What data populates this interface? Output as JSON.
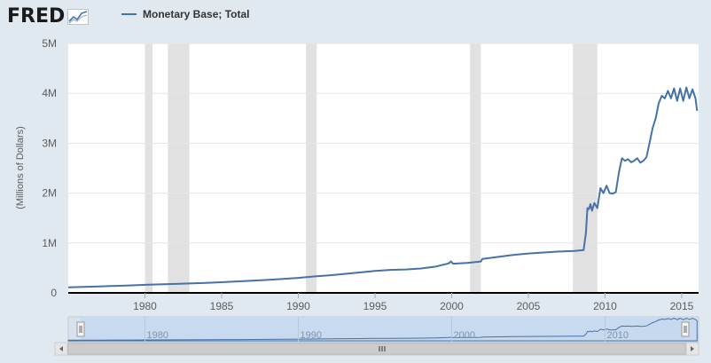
{
  "header": {
    "logo_text": "FRED",
    "logo_icon": "line-chart-icon"
  },
  "legend": {
    "label": "Monetary Base; Total"
  },
  "colors": {
    "series": "#4572a7",
    "recession": "#e1e1e1",
    "plot_bg": "#ffffff",
    "page_bg": "#e1e9f0",
    "navigator_fill": "#c6d8ee",
    "navigator_line": "#4572a7"
  },
  "chart_data": {
    "type": "line",
    "title": "",
    "ylabel": "(Millions of Dollars)",
    "xlabel": "",
    "xlim": [
      1975.0,
      2016.1
    ],
    "ylim": [
      0,
      5000000
    ],
    "y_ticks": [
      {
        "value": 0,
        "label": "0"
      },
      {
        "value": 1000000,
        "label": "1M"
      },
      {
        "value": 2000000,
        "label": "2M"
      },
      {
        "value": 3000000,
        "label": "3M"
      },
      {
        "value": 4000000,
        "label": "4M"
      },
      {
        "value": 5000000,
        "label": "5M"
      }
    ],
    "x_ticks": [
      {
        "value": 1980,
        "label": "1980"
      },
      {
        "value": 1985,
        "label": "1985"
      },
      {
        "value": 1990,
        "label": "1990"
      },
      {
        "value": 1995,
        "label": "1995"
      },
      {
        "value": 2000,
        "label": "2000"
      },
      {
        "value": 2005,
        "label": "2005"
      },
      {
        "value": 2010,
        "label": "2010"
      },
      {
        "value": 2015,
        "label": "2015"
      }
    ],
    "grid": true,
    "legend_position": "top",
    "recessions": [
      [
        1980.0,
        1980.5
      ],
      [
        1981.5,
        1982.9
      ],
      [
        1990.5,
        1991.2
      ],
      [
        2001.2,
        2001.9
      ],
      [
        2007.9,
        2009.5
      ]
    ],
    "series": [
      {
        "name": "Monetary Base; Total",
        "x": [
          1975.0,
          1977.0,
          1979.0,
          1980.0,
          1982.0,
          1984.0,
          1986.0,
          1988.0,
          1990.0,
          1991.0,
          1992.0,
          1993.0,
          1994.0,
          1995.0,
          1996.0,
          1997.0,
          1998.0,
          1999.0,
          1999.8,
          1999.95,
          2000.1,
          2001.0,
          2001.9,
          2002.0,
          2003.0,
          2004.0,
          2005.0,
          2006.0,
          2007.0,
          2008.0,
          2008.6,
          2008.75,
          2008.85,
          2008.95,
          2009.05,
          2009.15,
          2009.3,
          2009.5,
          2009.7,
          2009.9,
          2010.1,
          2010.3,
          2010.5,
          2010.7,
          2010.9,
          2011.1,
          2011.3,
          2011.5,
          2011.7,
          2011.9,
          2012.1,
          2012.3,
          2012.5,
          2012.7,
          2012.9,
          2013.1,
          2013.3,
          2013.5,
          2013.7,
          2013.9,
          2014.1,
          2014.3,
          2014.5,
          2014.7,
          2014.9,
          2015.1,
          2015.3,
          2015.5,
          2015.7,
          2015.9,
          2016.0
        ],
        "values": [
          110000,
          130000,
          150000,
          162000,
          180000,
          200000,
          230000,
          260000,
          300000,
          330000,
          350000,
          380000,
          410000,
          440000,
          460000,
          470000,
          490000,
          530000,
          590000,
          630000,
          585000,
          600000,
          630000,
          680000,
          720000,
          760000,
          790000,
          810000,
          830000,
          840000,
          860000,
          1200000,
          1700000,
          1680000,
          1780000,
          1650000,
          1800000,
          1700000,
          2100000,
          2000000,
          2150000,
          2000000,
          1990000,
          2020000,
          2400000,
          2700000,
          2650000,
          2680000,
          2620000,
          2650000,
          2700000,
          2610000,
          2650000,
          2720000,
          3000000,
          3300000,
          3500000,
          3800000,
          3950000,
          3900000,
          4050000,
          3900000,
          4100000,
          3850000,
          4100000,
          3850000,
          4120000,
          3900000,
          4080000,
          3900000,
          3650000
        ]
      }
    ]
  },
  "navigator": {
    "x_ticks": [
      {
        "value": 1980,
        "label": "1980"
      },
      {
        "value": 1990,
        "label": "1990"
      },
      {
        "value": 2000,
        "label": "2000"
      },
      {
        "value": 2010,
        "label": "2010"
      }
    ],
    "scrollbar_grip": "grip-lines-icon"
  }
}
